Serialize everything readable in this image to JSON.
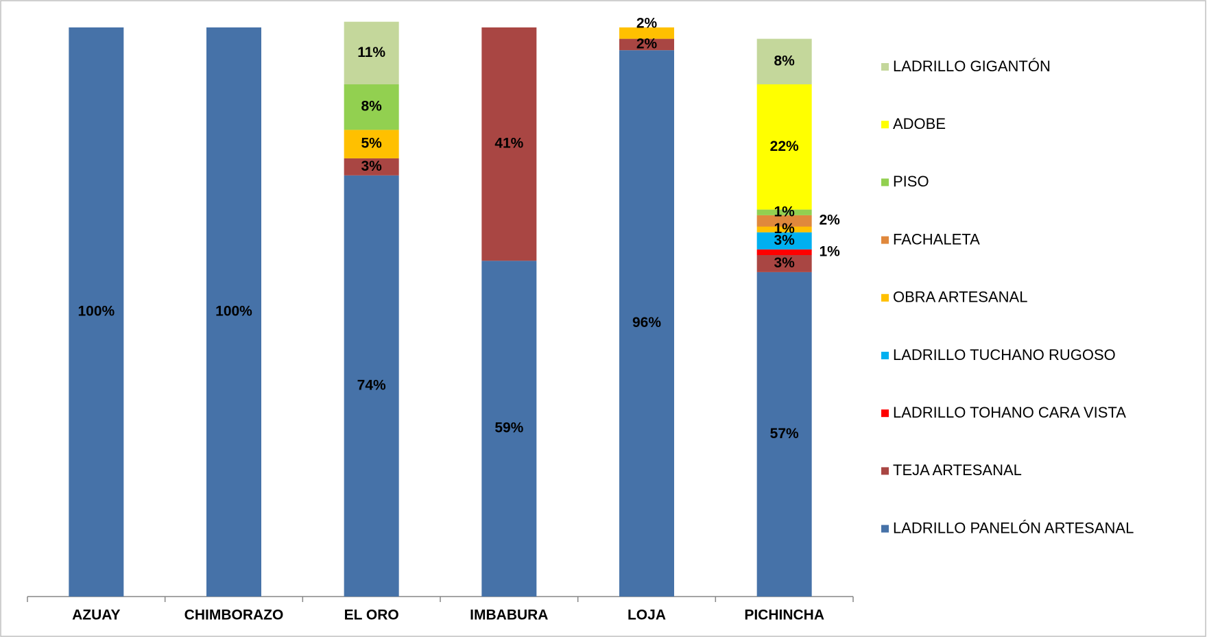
{
  "chart_data": {
    "type": "bar",
    "stacked": true,
    "categories": [
      "AZUAY",
      "CHIMBORAZO",
      "EL ORO",
      "IMBABURA",
      "LOJA",
      "PICHINCHA"
    ],
    "ylim": [
      0,
      100
    ],
    "series": [
      {
        "name": "LADRILLO PANELÓN ARTESANAL",
        "color": "#4672a8",
        "values": [
          100,
          100,
          74,
          59,
          96,
          57
        ],
        "value_labels": [
          "100%",
          "100%",
          "74%",
          "59%",
          "96%",
          "57%"
        ]
      },
      {
        "name": "TEJA ARTESANAL",
        "color": "#a94643",
        "values": [
          0,
          0,
          3,
          41,
          2,
          3
        ],
        "value_labels": [
          null,
          null,
          "3%",
          "41%",
          "2%",
          "3%"
        ]
      },
      {
        "name": "LADRILLO TOHANO CARA VISTA",
        "color": "#ff0000",
        "values": [
          0,
          0,
          0,
          0,
          0,
          1
        ],
        "value_labels": [
          null,
          null,
          null,
          null,
          null,
          "1%"
        ]
      },
      {
        "name": "LADRILLO TUCHANO RUGOSO",
        "color": "#00b0f0",
        "values": [
          0,
          0,
          0,
          0,
          0,
          3
        ],
        "value_labels": [
          null,
          null,
          null,
          null,
          null,
          "3%"
        ]
      },
      {
        "name": "OBRA ARTESANAL",
        "color": "#ffc000",
        "values": [
          0,
          0,
          5,
          0,
          2,
          1
        ],
        "value_labels": [
          null,
          null,
          "5%",
          null,
          "2%",
          "1%"
        ]
      },
      {
        "name": "FACHALETA",
        "color": "#e0883c",
        "values": [
          0,
          0,
          0,
          0,
          0,
          2
        ],
        "value_labels": [
          null,
          null,
          null,
          null,
          null,
          "2%"
        ]
      },
      {
        "name": "PISO",
        "color": "#92d050",
        "values": [
          0,
          0,
          8,
          0,
          0,
          1
        ],
        "value_labels": [
          null,
          null,
          "8%",
          null,
          null,
          "1%"
        ]
      },
      {
        "name": "ADOBE",
        "color": "#ffff00",
        "values": [
          0,
          0,
          0,
          0,
          0,
          22
        ],
        "value_labels": [
          null,
          null,
          null,
          null,
          null,
          "22%"
        ]
      },
      {
        "name": "LADRILLO GIGANTÓN",
        "color": "#c4d79b",
        "values": [
          0,
          0,
          11,
          0,
          0,
          8
        ],
        "value_labels": [
          null,
          null,
          "11%",
          null,
          null,
          "8%"
        ]
      }
    ],
    "legend": "right"
  }
}
